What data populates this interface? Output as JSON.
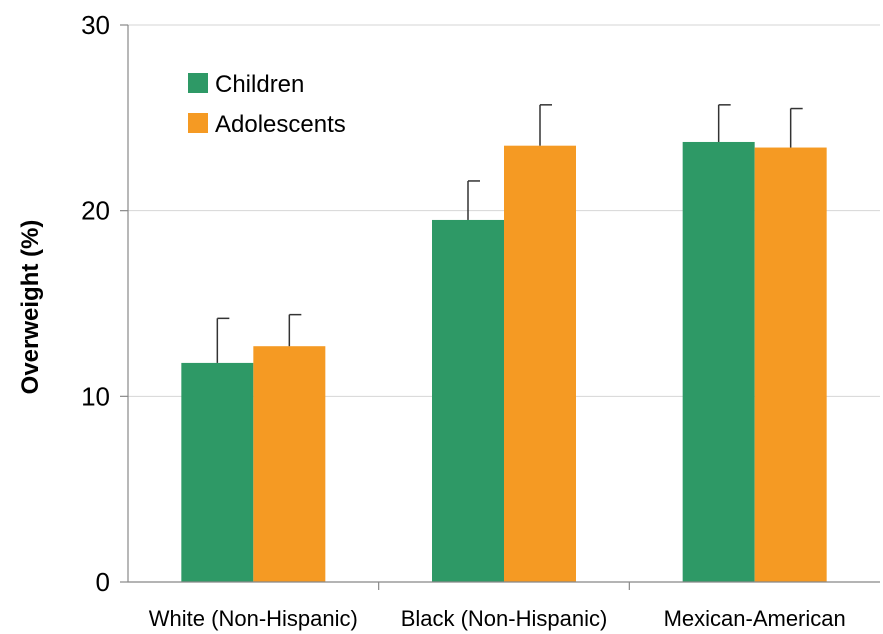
{
  "chart_data": {
    "type": "bar",
    "title": "",
    "xlabel": "",
    "ylabel": "Overweight (%)",
    "ylim": [
      0,
      30
    ],
    "yticks": [
      "0",
      "10",
      "20",
      "30"
    ],
    "grid": true,
    "legend_position": "top-left",
    "categories": [
      "White (Non-Hispanic)",
      "Black (Non-Hispanic)",
      "Mexican-American"
    ],
    "series": [
      {
        "name": "Children",
        "color": "#2e9966",
        "values": [
          11.8,
          19.5,
          23.7
        ],
        "error_upper": [
          14.2,
          21.6,
          25.7
        ]
      },
      {
        "name": "Adolescents",
        "color": "#f59a23",
        "values": [
          12.7,
          23.5,
          23.4
        ],
        "error_upper": [
          14.4,
          25.7,
          25.5
        ]
      }
    ]
  }
}
